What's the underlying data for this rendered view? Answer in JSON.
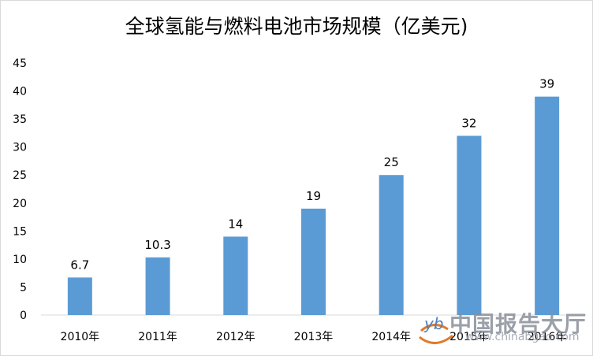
{
  "chart_data": {
    "type": "bar",
    "title": "全球氢能与燃料电池市场规模（亿美元)",
    "categories": [
      "2010年",
      "2011年",
      "2012年",
      "2013年",
      "2014年",
      "2015年",
      "2016年"
    ],
    "values": [
      6.7,
      10.3,
      14,
      19,
      25,
      32,
      39
    ],
    "data_labels": [
      "6.7",
      "10.3",
      "14",
      "19",
      "25",
      "32",
      "39"
    ],
    "ylim": [
      0,
      45
    ],
    "yticks": [
      "0",
      "5",
      "10",
      "15",
      "20",
      "25",
      "30",
      "35",
      "40",
      "45"
    ],
    "grid": false,
    "legend": "none",
    "bar_color": "#5b9bd5"
  },
  "watermark": {
    "name": "中国报告大厅",
    "url": "www.chinabgao.com",
    "logo_text": "yb"
  }
}
